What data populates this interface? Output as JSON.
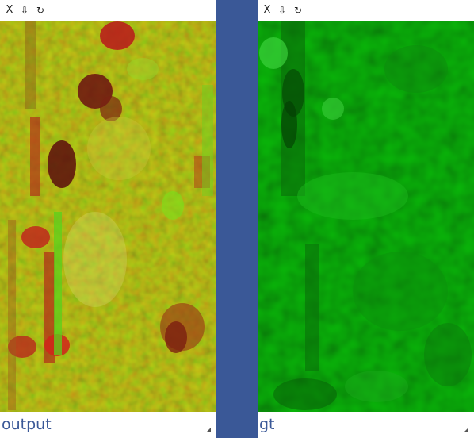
{
  "panels": [
    {
      "id": "output",
      "label": "output",
      "toolbar": {
        "close": "X",
        "download": "⇩",
        "reset": "↻"
      }
    },
    {
      "id": "gt",
      "label": "gt",
      "toolbar": {
        "close": "X",
        "download": "⇩",
        "reset": "↻"
      }
    }
  ],
  "colors": {
    "background": "#3a5897",
    "label": "#3a5897",
    "output_base": "#c8c832",
    "gt_base": "#16a016"
  }
}
